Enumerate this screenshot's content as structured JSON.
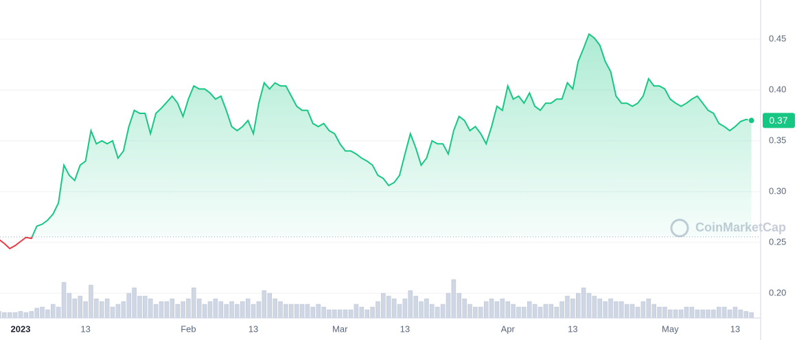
{
  "chart_data": {
    "type": "line",
    "x": [
      -4,
      -3,
      -2,
      -1,
      0,
      1,
      2,
      3,
      4,
      5,
      6,
      7,
      8,
      9,
      10,
      11,
      12,
      13,
      14,
      15,
      16,
      17,
      18,
      19,
      20,
      21,
      22,
      23,
      24,
      25,
      26,
      27,
      28,
      29,
      30,
      31,
      32,
      33,
      34,
      35,
      36,
      37,
      38,
      39,
      40,
      41,
      42,
      43,
      44,
      45,
      46,
      47,
      48,
      49,
      50,
      51,
      52,
      53,
      54,
      55,
      56,
      57,
      58,
      59,
      60,
      61,
      62,
      63,
      64,
      65,
      66,
      67,
      68,
      69,
      70,
      71,
      72,
      73,
      74,
      75,
      76,
      77,
      78,
      79,
      80,
      81,
      82,
      83,
      84,
      85,
      86,
      87,
      88,
      89,
      90,
      91,
      92,
      93,
      94,
      95,
      96,
      97,
      98,
      99,
      100,
      101,
      102,
      103,
      104,
      105,
      106,
      107,
      108,
      109,
      110,
      111,
      112,
      113,
      114,
      115,
      116,
      117,
      118,
      119,
      120,
      121,
      122,
      123,
      124,
      125,
      126,
      127,
      128,
      129,
      130,
      131,
      132,
      133,
      134,
      135
    ],
    "values": [
      0.253,
      0.249,
      0.244,
      0.247,
      0.251,
      0.255,
      0.254,
      0.266,
      0.268,
      0.272,
      0.278,
      0.289,
      0.326,
      0.316,
      0.311,
      0.326,
      0.33,
      0.36,
      0.347,
      0.35,
      0.347,
      0.35,
      0.333,
      0.34,
      0.364,
      0.38,
      0.377,
      0.377,
      0.357,
      0.377,
      0.382,
      0.388,
      0.394,
      0.387,
      0.374,
      0.391,
      0.404,
      0.401,
      0.401,
      0.397,
      0.391,
      0.394,
      0.38,
      0.364,
      0.36,
      0.364,
      0.37,
      0.357,
      0.387,
      0.407,
      0.401,
      0.407,
      0.404,
      0.404,
      0.394,
      0.384,
      0.38,
      0.38,
      0.367,
      0.364,
      0.367,
      0.36,
      0.357,
      0.347,
      0.34,
      0.34,
      0.337,
      0.333,
      0.33,
      0.326,
      0.316,
      0.313,
      0.306,
      0.309,
      0.316,
      0.337,
      0.357,
      0.343,
      0.326,
      0.333,
      0.35,
      0.347,
      0.347,
      0.337,
      0.36,
      0.374,
      0.37,
      0.36,
      0.364,
      0.357,
      0.347,
      0.364,
      0.384,
      0.38,
      0.404,
      0.391,
      0.394,
      0.387,
      0.397,
      0.384,
      0.38,
      0.387,
      0.387,
      0.391,
      0.391,
      0.407,
      0.401,
      0.428,
      0.441,
      0.455,
      0.451,
      0.444,
      0.428,
      0.418,
      0.394,
      0.387,
      0.387,
      0.384,
      0.387,
      0.394,
      0.411,
      0.404,
      0.404,
      0.401,
      0.391,
      0.387,
      0.384,
      0.387,
      0.391,
      0.394,
      0.387,
      0.38,
      0.377,
      0.367,
      0.364,
      0.36,
      0.364,
      0.369,
      0.371,
      0.37
    ],
    "volume": {
      "values": [
        12,
        10,
        10,
        10,
        12,
        10,
        12,
        18,
        20,
        15,
        25,
        20,
        65,
        45,
        35,
        40,
        30,
        60,
        35,
        30,
        35,
        20,
        25,
        30,
        45,
        55,
        40,
        40,
        35,
        25,
        30,
        30,
        35,
        25,
        30,
        35,
        55,
        35,
        25,
        30,
        35,
        30,
        25,
        30,
        25,
        30,
        35,
        25,
        30,
        50,
        45,
        35,
        30,
        25,
        25,
        25,
        25,
        25,
        20,
        25,
        20,
        15,
        15,
        15,
        15,
        15,
        25,
        20,
        15,
        20,
        30,
        45,
        40,
        35,
        25,
        35,
        50,
        40,
        30,
        35,
        25,
        20,
        25,
        45,
        70,
        45,
        35,
        25,
        20,
        20,
        30,
        35,
        30,
        35,
        30,
        25,
        20,
        20,
        30,
        25,
        20,
        25,
        25,
        20,
        30,
        40,
        35,
        45,
        55,
        45,
        40,
        35,
        30,
        35,
        30,
        30,
        25,
        25,
        20,
        30,
        35,
        25,
        20,
        20,
        15,
        15,
        15,
        20,
        20,
        15,
        15,
        15,
        15,
        20,
        20,
        15,
        20,
        15,
        12,
        10
      ],
      "lim": [
        0,
        100
      ],
      "color": "#cfd6e4"
    },
    "baseline": 0.2555,
    "up_color": "#16c784",
    "down_color": "#ea3943",
    "price_label": "0.37",
    "watermark": "CoinMarketCap",
    "xlim": [
      -3.8,
      136.7
    ],
    "xticks": [
      {
        "value": 0,
        "label": "2023"
      },
      {
        "value": 12,
        "label": "13"
      },
      {
        "value": 31,
        "label": "Feb"
      },
      {
        "value": 43,
        "label": "13"
      },
      {
        "value": 59,
        "label": "Mar"
      },
      {
        "value": 71,
        "label": "13"
      },
      {
        "value": 90,
        "label": "Apr"
      },
      {
        "value": 102,
        "label": "13"
      },
      {
        "value": 120,
        "label": "May"
      },
      {
        "value": 132,
        "label": "13"
      }
    ],
    "ylim": [
      0.1757,
      0.4885
    ],
    "yticks": [
      {
        "value": 0.2,
        "label": "0.20"
      },
      0.25,
      {
        "value": 0.3,
        "label": "0.30"
      },
      0.35,
      {
        "value": 0.4,
        "label": "0.40"
      },
      0.45
    ],
    "grid": true
  }
}
